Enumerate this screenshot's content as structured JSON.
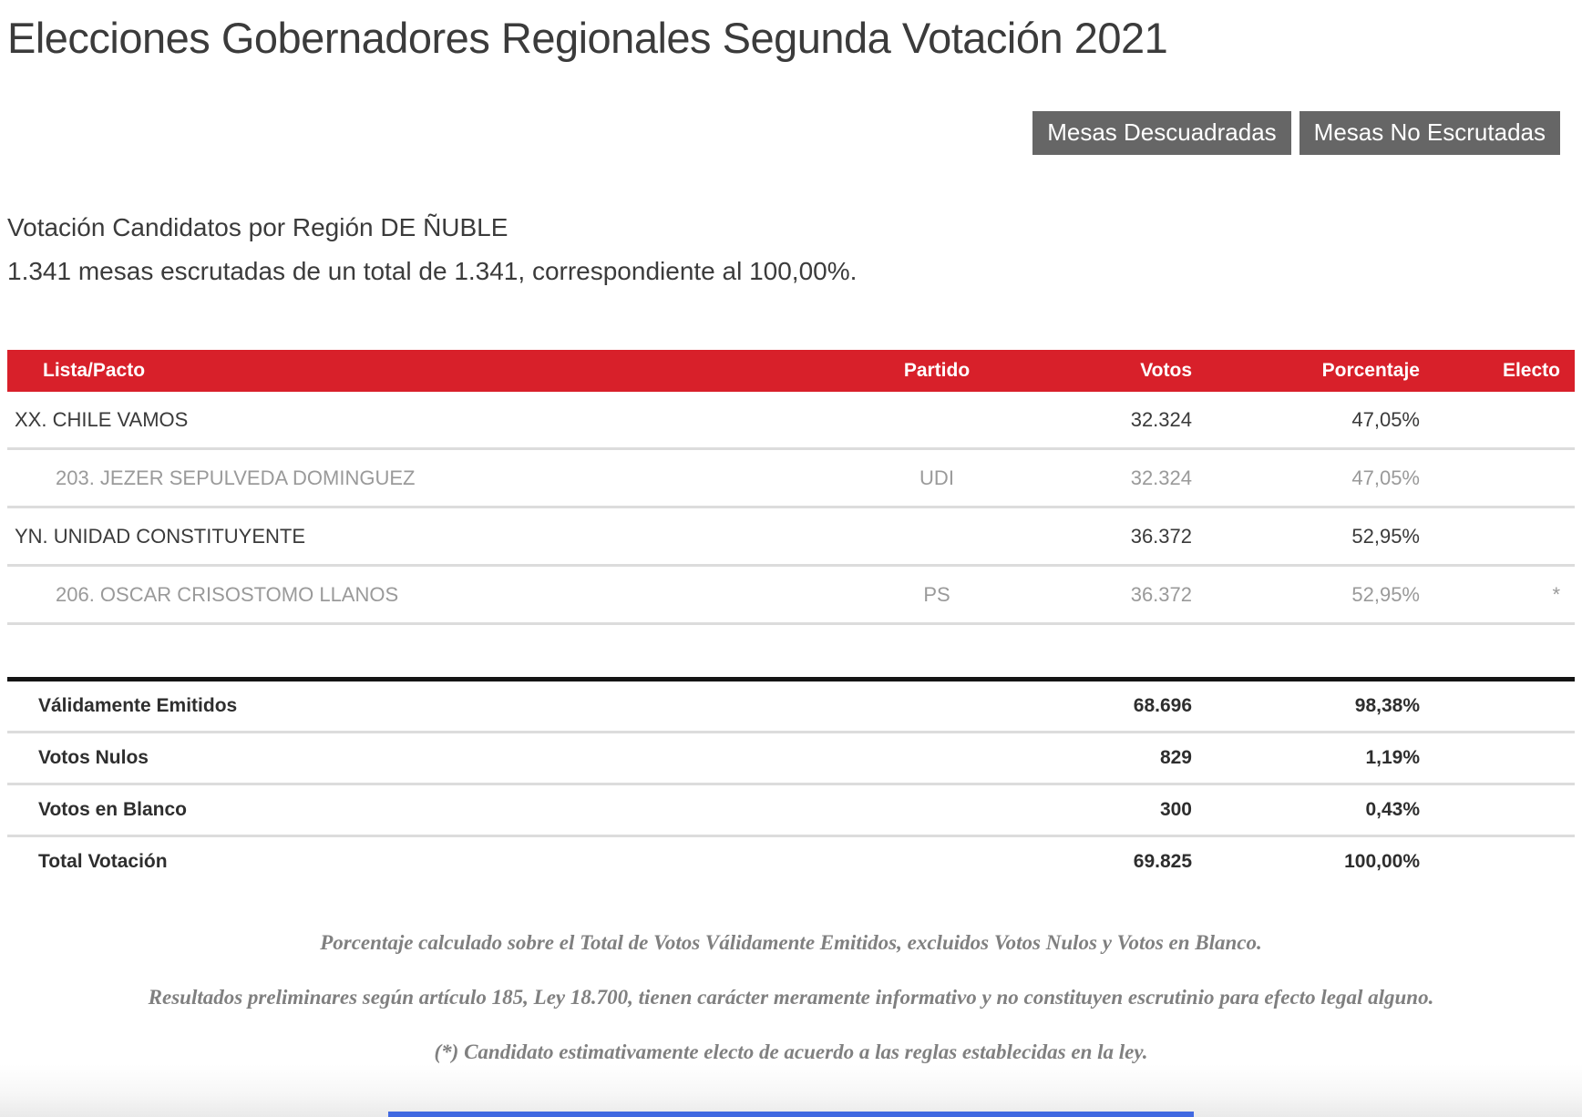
{
  "page": {
    "title": "Elecciones Gobernadores Regionales Segunda Votación 2021",
    "subtitle": "Votación Candidatos por Región DE ÑUBLE",
    "mesas_line": "1.341 mesas escrutadas de un total de 1.341, correspondiente al 100,00%."
  },
  "buttons": [
    {
      "label": "Mesas Descuadradas"
    },
    {
      "label": "Mesas No Escrutadas"
    }
  ],
  "table": {
    "headers": [
      "Lista/Pacto",
      "Partido",
      "Votos",
      "Porcentaje",
      "Electo"
    ],
    "rows": [
      {
        "type": "pact",
        "lista": "XX. CHILE VAMOS",
        "partido": "",
        "votos": "32.324",
        "porcentaje": "47,05%",
        "electo": ""
      },
      {
        "type": "candidate",
        "lista": "203. JEZER SEPULVEDA DOMINGUEZ",
        "partido": "UDI",
        "votos": "32.324",
        "porcentaje": "47,05%",
        "electo": ""
      },
      {
        "type": "pact",
        "lista": "YN. UNIDAD CONSTITUYENTE",
        "partido": "",
        "votos": "36.372",
        "porcentaje": "52,95%",
        "electo": ""
      },
      {
        "type": "candidate",
        "lista": "206. OSCAR CRISOSTOMO LLANOS",
        "partido": "PS",
        "votos": "36.372",
        "porcentaje": "52,95%",
        "electo": "*"
      }
    ],
    "summary": [
      {
        "label": "Válidamente Emitidos",
        "votos": "68.696",
        "porcentaje": "98,38%"
      },
      {
        "label": "Votos Nulos",
        "votos": "829",
        "porcentaje": "1,19%"
      },
      {
        "label": "Votos en Blanco",
        "votos": "300",
        "porcentaje": "0,43%"
      },
      {
        "label": "Total Votación",
        "votos": "69.825",
        "porcentaje": "100,00%"
      }
    ]
  },
  "notes": [
    {
      "text": "Porcentaje calculado sobre el Total de Votos Válidamente Emitidos, excluidos Votos Nulos y Votos en Blanco."
    },
    {
      "text": "Resultados preliminares según artículo 185, Ley 18.700, tienen carácter meramente informativo y no constituyen escrutinio para efecto legal alguno."
    },
    {
      "text": "(*) Candidato estimativamente electo de acuerdo a las reglas establecidas en la ley."
    }
  ],
  "colors": {
    "header_red": "#d8202a",
    "button_gray": "#666666",
    "separator_gray": "#dcdcdc",
    "candidate_gray": "#9a9a9a",
    "accent_blue": "#4169e1"
  }
}
